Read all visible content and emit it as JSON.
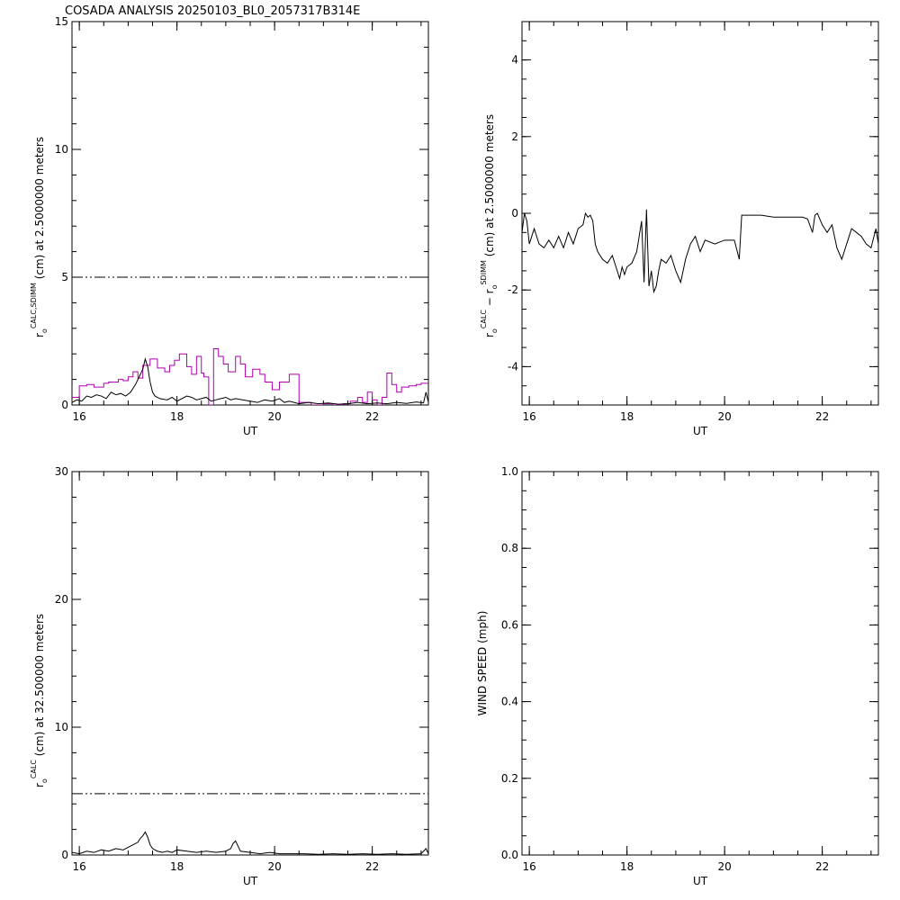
{
  "title": "COSADA ANALYSIS 20250103_BL0_2057317B314E",
  "chart_data": [
    {
      "type": "line",
      "xlabel": "UT",
      "ylabel": "r_o^{CALC,SDIMM} (cm)  at  2.5000000 meters",
      "ylabel_main": "r",
      "ylabel_sub": "o",
      "ylabel_sup": "CALC,SDIMM",
      "ylabel_tail": "(cm)  at  2.5000000 meters",
      "xlim": [
        15.85,
        23.15
      ],
      "ylim": [
        0,
        15
      ],
      "xticks": [
        16,
        18,
        20,
        22
      ],
      "yticks": [
        0,
        5,
        10,
        15
      ],
      "xminor": 0.5,
      "yminor": 1,
      "series": [
        {
          "style": "dash-dot-dot",
          "color": "#000000",
          "x": [
            15.85,
            23.15
          ],
          "y": [
            5.0,
            5.0
          ]
        },
        {
          "style": "step",
          "color": "#b000b0",
          "x": [
            15.85,
            16.0,
            16.15,
            16.3,
            16.5,
            16.6,
            16.8,
            16.9,
            17.0,
            17.1,
            17.2,
            17.3,
            17.45,
            17.6,
            17.75,
            17.85,
            17.95,
            18.05,
            18.2,
            18.3,
            18.4,
            18.5,
            18.55,
            18.65,
            18.75,
            18.85,
            18.95,
            19.05,
            19.2,
            19.3,
            19.4,
            19.55,
            19.7,
            19.8,
            19.95,
            20.1,
            20.3,
            20.5,
            20.75,
            21.0,
            21.2,
            21.4,
            21.55,
            21.7,
            21.8,
            21.9,
            22.0,
            22.1,
            22.2,
            22.3,
            22.4,
            22.5,
            22.6,
            22.75,
            22.9,
            23.0,
            23.15
          ],
          "y": [
            0.3,
            0.75,
            0.8,
            0.7,
            0.85,
            0.9,
            1.0,
            0.95,
            1.1,
            1.3,
            1.05,
            1.55,
            1.8,
            1.45,
            1.3,
            1.55,
            1.75,
            2.0,
            1.5,
            1.2,
            1.9,
            1.25,
            1.1,
            0.0,
            2.2,
            1.9,
            1.6,
            1.3,
            1.9,
            1.6,
            1.1,
            1.4,
            1.2,
            0.9,
            0.6,
            0.9,
            1.2,
            0.1,
            0.0,
            0.05,
            0.0,
            0.05,
            0.15,
            0.3,
            0.1,
            0.5,
            0.2,
            0.0,
            0.3,
            1.25,
            0.8,
            0.5,
            0.7,
            0.75,
            0.8,
            0.85,
            0.9
          ]
        },
        {
          "style": "line",
          "color": "#000000",
          "x": [
            15.85,
            15.95,
            16.05,
            16.15,
            16.25,
            16.35,
            16.45,
            16.55,
            16.65,
            16.75,
            16.85,
            16.95,
            17.05,
            17.15,
            17.2,
            17.25,
            17.3,
            17.35,
            17.4,
            17.45,
            17.5,
            17.55,
            17.65,
            17.8,
            17.9,
            18.0,
            18.1,
            18.2,
            18.3,
            18.4,
            18.5,
            18.6,
            18.7,
            18.8,
            18.9,
            19.0,
            19.1,
            19.2,
            19.35,
            19.5,
            19.65,
            19.8,
            19.95,
            20.1,
            20.2,
            20.3,
            20.5,
            20.7,
            20.9,
            21.1,
            21.3,
            21.5,
            21.7,
            21.9,
            22.1,
            22.3,
            22.5,
            22.7,
            22.9,
            23.05,
            23.1,
            23.15
          ],
          "y": [
            0.1,
            0.2,
            0.15,
            0.35,
            0.3,
            0.4,
            0.35,
            0.25,
            0.5,
            0.4,
            0.45,
            0.35,
            0.5,
            0.8,
            1.0,
            1.2,
            1.4,
            1.8,
            1.5,
            0.9,
            0.5,
            0.35,
            0.25,
            0.2,
            0.3,
            0.15,
            0.25,
            0.35,
            0.3,
            0.2,
            0.25,
            0.3,
            0.15,
            0.2,
            0.25,
            0.3,
            0.2,
            0.25,
            0.2,
            0.15,
            0.1,
            0.2,
            0.15,
            0.25,
            0.1,
            0.15,
            0.05,
            0.1,
            0.05,
            0.08,
            0.03,
            0.05,
            0.1,
            0.05,
            0.08,
            0.05,
            0.1,
            0.06,
            0.12,
            0.08,
            0.5,
            0.1
          ]
        }
      ]
    },
    {
      "type": "line",
      "xlabel": "UT",
      "ylabel": "r_o^{CALC} - r_o^{SDIMM} (cm) at 2.5000000 meters",
      "ylabel_main": "r",
      "ylabel_sub": "o",
      "ylabel_sup": "CALC",
      "ylabel_mid": " −  r",
      "ylabel_sub2": "o",
      "ylabel_sup2": "SDIMM",
      "ylabel_tail": "(cm) at 2.5000000 meters",
      "xlim": [
        15.85,
        23.15
      ],
      "ylim": [
        -5,
        5
      ],
      "xticks": [
        16,
        18,
        20,
        22
      ],
      "yticks": [
        -4,
        -2,
        0,
        2,
        4
      ],
      "xminor": 0.5,
      "yminor": 0.5,
      "series": [
        {
          "style": "line",
          "color": "#000000",
          "x": [
            15.85,
            15.9,
            15.95,
            16.0,
            16.05,
            16.1,
            16.2,
            16.3,
            16.4,
            16.5,
            16.6,
            16.7,
            16.8,
            16.9,
            17.0,
            17.1,
            17.15,
            17.2,
            17.25,
            17.3,
            17.35,
            17.4,
            17.5,
            17.6,
            17.7,
            17.8,
            17.85,
            17.9,
            17.95,
            18.0,
            18.1,
            18.2,
            18.25,
            18.3,
            18.35,
            18.4,
            18.45,
            18.5,
            18.55,
            18.6,
            18.65,
            18.7,
            18.8,
            18.9,
            19.0,
            19.1,
            19.2,
            19.3,
            19.4,
            19.5,
            19.6,
            19.8,
            20.0,
            20.2,
            20.3,
            20.35,
            20.5,
            20.75,
            21.0,
            21.3,
            21.6,
            21.7,
            21.8,
            21.85,
            21.9,
            22.0,
            22.1,
            22.2,
            22.3,
            22.4,
            22.5,
            22.6,
            22.7,
            22.8,
            22.9,
            23.0,
            23.1,
            23.15
          ],
          "y": [
            -0.5,
            0.0,
            -0.2,
            -0.8,
            -0.6,
            -0.4,
            -0.8,
            -0.9,
            -0.7,
            -0.9,
            -0.6,
            -0.9,
            -0.5,
            -0.8,
            -0.4,
            -0.3,
            0.0,
            -0.1,
            -0.05,
            -0.2,
            -0.8,
            -1.0,
            -1.2,
            -1.3,
            -1.1,
            -1.5,
            -1.7,
            -1.4,
            -1.6,
            -1.4,
            -1.3,
            -1.0,
            -0.6,
            -0.2,
            -1.8,
            0.1,
            -1.9,
            -1.5,
            -2.05,
            -1.9,
            -1.5,
            -1.2,
            -1.3,
            -1.1,
            -1.5,
            -1.8,
            -1.2,
            -0.8,
            -0.6,
            -1.0,
            -0.7,
            -0.8,
            -0.7,
            -0.7,
            -1.2,
            -0.05,
            -0.05,
            -0.05,
            -0.1,
            -0.1,
            -0.1,
            -0.15,
            -0.5,
            -0.05,
            0.0,
            -0.3,
            -0.5,
            -0.3,
            -0.9,
            -1.2,
            -0.8,
            -0.4,
            -0.5,
            -0.6,
            -0.8,
            -0.9,
            -0.4,
            -0.8
          ]
        }
      ]
    },
    {
      "type": "line",
      "xlabel": "UT",
      "ylabel": "r_o^{CALC} (cm) at 32.500000 meters",
      "ylabel_main": "r",
      "ylabel_sub": "o",
      "ylabel_sup": "CALC",
      "ylabel_tail": "(cm) at 32.500000 meters",
      "xlim": [
        15.85,
        23.15
      ],
      "ylim": [
        0,
        30
      ],
      "xticks": [
        16,
        18,
        20,
        22
      ],
      "yticks": [
        0,
        10,
        20,
        30
      ],
      "xminor": 0.5,
      "yminor": 2,
      "series": [
        {
          "style": "dash-dot-dot",
          "color": "#000000",
          "x": [
            15.85,
            23.15
          ],
          "y": [
            4.8,
            4.8
          ]
        },
        {
          "style": "line",
          "color": "#000000",
          "x": [
            15.85,
            16.0,
            16.15,
            16.3,
            16.45,
            16.6,
            16.75,
            16.9,
            17.0,
            17.1,
            17.2,
            17.25,
            17.3,
            17.35,
            17.4,
            17.45,
            17.5,
            17.6,
            17.7,
            17.8,
            17.9,
            18.0,
            18.2,
            18.4,
            18.6,
            18.8,
            19.0,
            19.1,
            19.15,
            19.2,
            19.25,
            19.3,
            19.5,
            19.7,
            19.9,
            20.1,
            20.3,
            20.6,
            20.9,
            21.2,
            21.5,
            21.8,
            22.1,
            22.4,
            22.7,
            23.0,
            23.1,
            23.15
          ],
          "y": [
            0.2,
            0.1,
            0.3,
            0.2,
            0.4,
            0.3,
            0.5,
            0.4,
            0.6,
            0.8,
            1.0,
            1.3,
            1.5,
            1.8,
            1.4,
            0.8,
            0.5,
            0.3,
            0.2,
            0.3,
            0.2,
            0.4,
            0.3,
            0.2,
            0.3,
            0.2,
            0.3,
            0.5,
            0.9,
            1.1,
            0.7,
            0.3,
            0.2,
            0.1,
            0.2,
            0.1,
            0.1,
            0.1,
            0.05,
            0.1,
            0.05,
            0.1,
            0.05,
            0.1,
            0.05,
            0.1,
            0.5,
            0.1
          ]
        }
      ]
    },
    {
      "type": "line",
      "xlabel": "UT",
      "ylabel": "WIND SPEED (mph)",
      "xlim": [
        15.85,
        23.15
      ],
      "ylim": [
        0,
        1
      ],
      "xticks": [
        16,
        18,
        20,
        22
      ],
      "yticks": [
        0.0,
        0.2,
        0.4,
        0.6,
        0.8,
        1.0
      ],
      "ytick_labels": [
        "0.0",
        "0.2",
        "0.4",
        "0.6",
        "0.8",
        "1.0"
      ],
      "xminor": 0.5,
      "yminor": 0.05,
      "series": []
    }
  ]
}
